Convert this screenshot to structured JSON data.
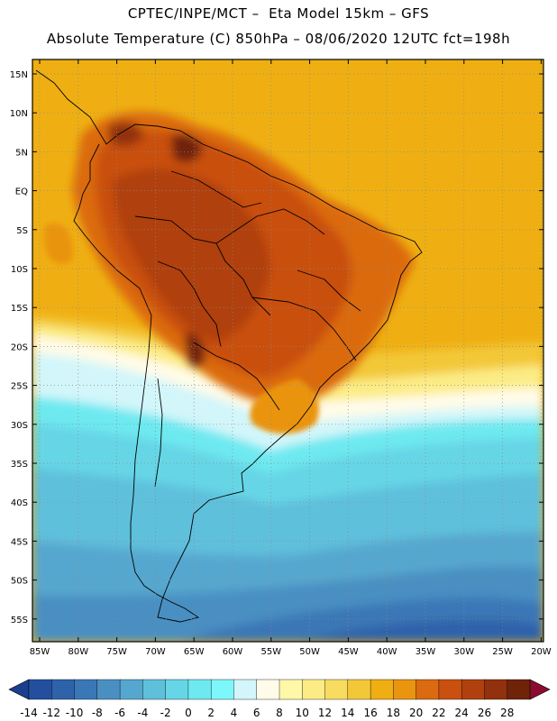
{
  "title": {
    "line1": "CPTEC/INPE/MCT –  Eta Model 15km – GFS",
    "line2": "Absolute Temperature (C) 850hPa – 08/06/2020 12UTC fct=198h"
  },
  "axes": {
    "lat_labels": [
      "15N",
      "10N",
      "5N",
      "EQ",
      "5S",
      "10S",
      "15S",
      "20S",
      "25S",
      "30S",
      "35S",
      "40S",
      "45S",
      "50S",
      "55S"
    ],
    "lon_labels": [
      "85W",
      "80W",
      "75W",
      "70W",
      "65W",
      "60W",
      "55W",
      "50W",
      "45W",
      "40W",
      "35W",
      "30W",
      "25W",
      "20W"
    ]
  },
  "colorbar": {
    "labels": [
      "-14",
      "-12",
      "-10",
      "-8",
      "-6",
      "-4",
      "-2",
      "0",
      "2",
      "4",
      "6",
      "8",
      "10",
      "12",
      "14",
      "16",
      "18",
      "20",
      "22",
      "24",
      "26",
      "28"
    ],
    "colors": [
      "#1b3f8f",
      "#244f9e",
      "#2e62aa",
      "#3a77b6",
      "#4a8fc2",
      "#56a7cf",
      "#5fc0dc",
      "#66d6e6",
      "#6ee9f0",
      "#7ef7fa",
      "#d2f6fa",
      "#fffbe8",
      "#fff8a8",
      "#fcec86",
      "#f8dc60",
      "#f3c838",
      "#efaf13",
      "#ea9410",
      "#db6a10",
      "#c9500f",
      "#b0410e",
      "#92310d",
      "#6f2309",
      "#8a0c2e"
    ]
  }
}
